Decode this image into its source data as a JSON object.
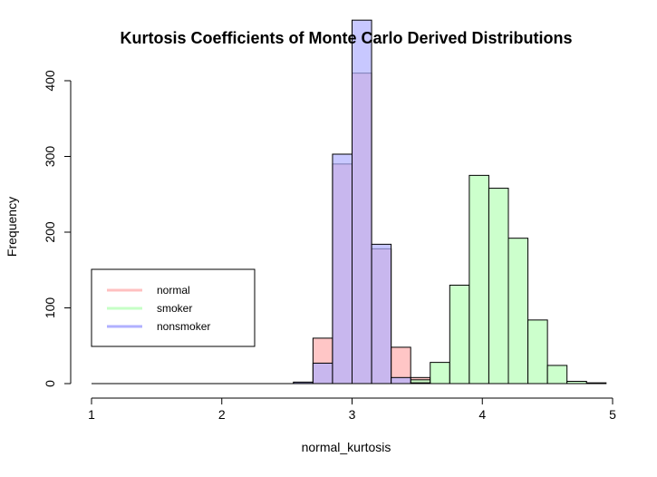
{
  "chart_data": {
    "type": "histogram",
    "title": "Kurtosis Coefficients of Monte Carlo Derived Distributions",
    "xlabel": "normal_kurtosis",
    "ylabel": "Frequency",
    "xlim": [
      1,
      5
    ],
    "ylim": [
      0,
      400
    ],
    "x_ticks": [
      1,
      2,
      3,
      4,
      5
    ],
    "y_ticks": [
      0,
      100,
      200,
      300,
      400
    ],
    "bin_width": 0.15,
    "series": [
      {
        "name": "normal",
        "color": "#ffc0c0",
        "bins": [
          [
            2.55,
            2.7,
            1
          ],
          [
            2.7,
            2.85,
            60
          ],
          [
            2.85,
            3.0,
            290
          ],
          [
            3.0,
            3.15,
            410
          ],
          [
            3.15,
            3.3,
            178
          ],
          [
            3.3,
            3.45,
            48
          ],
          [
            3.45,
            3.6,
            8
          ]
        ]
      },
      {
        "name": "smoker",
        "color": "#c6ffc6",
        "bins": [
          [
            3.45,
            3.6,
            5
          ],
          [
            3.6,
            3.75,
            28
          ],
          [
            3.75,
            3.9,
            130
          ],
          [
            3.9,
            4.05,
            275
          ],
          [
            4.05,
            4.2,
            258
          ],
          [
            4.2,
            4.35,
            192
          ],
          [
            4.35,
            4.5,
            84
          ],
          [
            4.5,
            4.65,
            24
          ],
          [
            4.65,
            4.8,
            3
          ],
          [
            4.8,
            4.95,
            1
          ]
        ]
      },
      {
        "name": "nonsmoker",
        "color": "#b0b0ff",
        "bins": [
          [
            2.55,
            2.7,
            2
          ],
          [
            2.7,
            2.85,
            27
          ],
          [
            2.85,
            3.0,
            303
          ],
          [
            3.0,
            3.15,
            480
          ],
          [
            3.15,
            3.3,
            184
          ],
          [
            3.3,
            3.45,
            8
          ],
          [
            3.45,
            3.6,
            1
          ]
        ]
      }
    ],
    "legend": {
      "position": "left",
      "entries": [
        "normal",
        "smoker",
        "nonsmoker"
      ]
    },
    "grid": false
  }
}
